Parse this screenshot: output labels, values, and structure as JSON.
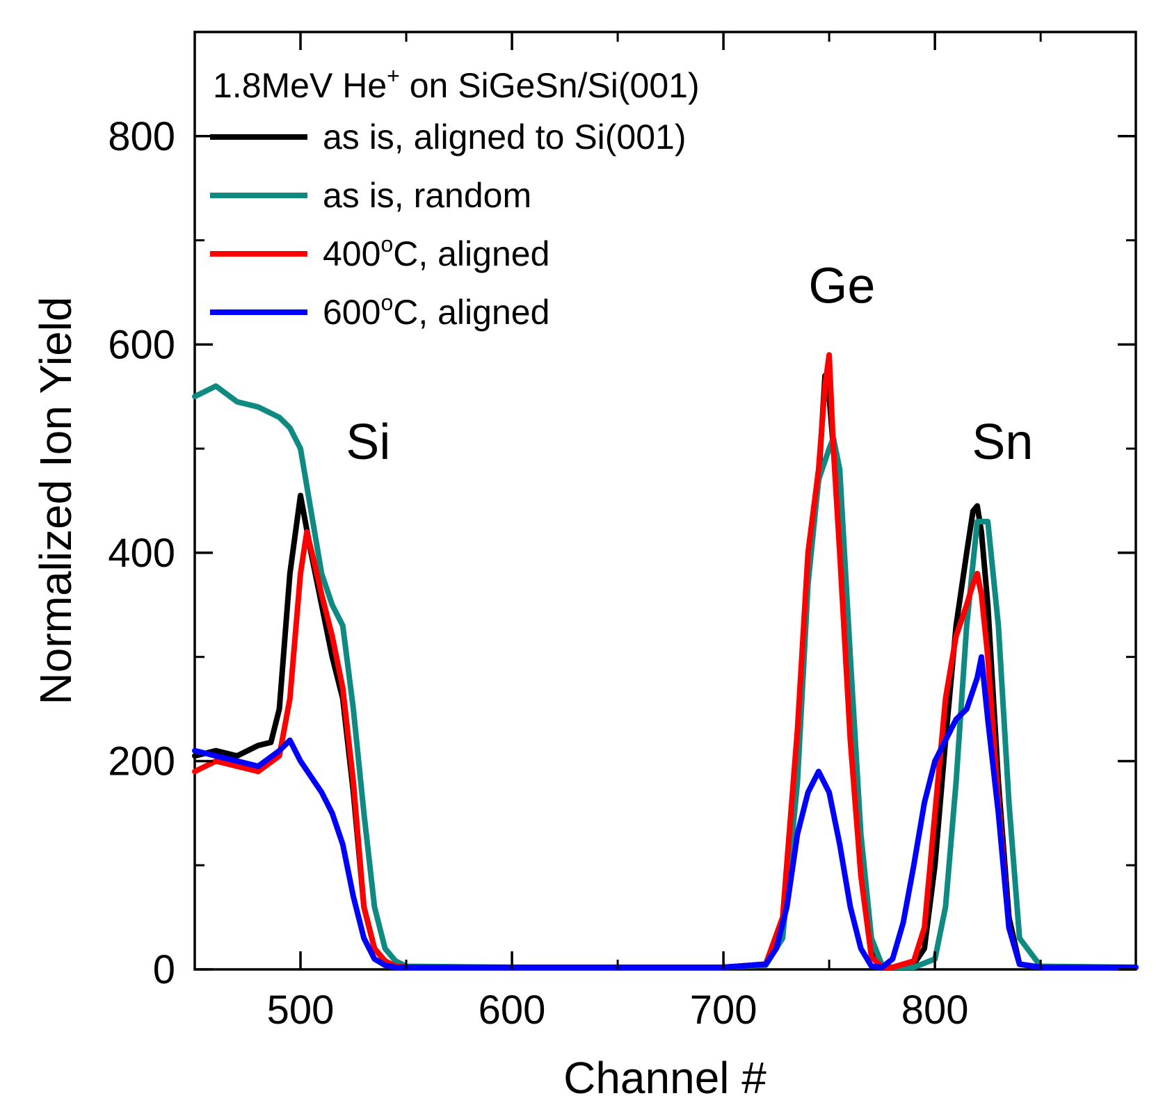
{
  "chart_data": {
    "type": "line",
    "title": "",
    "xlabel": "Channel #",
    "ylabel": "Normalized Ion Yield",
    "xlim": [
      450,
      895
    ],
    "ylim": [
      0,
      900
    ],
    "x_ticks": [
      500,
      600,
      700,
      800
    ],
    "y_ticks": [
      0,
      200,
      400,
      600,
      800
    ],
    "x_tick_labels": [
      "500",
      "600",
      "700",
      "800"
    ],
    "y_tick_labels": [
      "0",
      "200",
      "400",
      "600",
      "800"
    ],
    "legend_header": {
      "prefix": "1.8MeV He",
      "superscript": "+",
      "suffix": " on SiGeSn/Si(001)"
    },
    "legend_position": "top-left",
    "annotations": [
      {
        "text": "Si",
        "x": 532,
        "y": 490
      },
      {
        "text": "Ge",
        "x": 756,
        "y": 640
      },
      {
        "text": "Sn",
        "x": 832,
        "y": 490
      }
    ],
    "series": [
      {
        "name": "as is, aligned to Si(001)",
        "label_parts": {
          "main": "as is, aligned to Si(001)",
          "sup": "",
          "tail": ""
        },
        "color": "#000000",
        "x": [
          450,
          460,
          470,
          480,
          486,
          490,
          495,
          500,
          505,
          510,
          515,
          520,
          525,
          530,
          535,
          540,
          545,
          550,
          600,
          700,
          720,
          728,
          735,
          740,
          745,
          748,
          750,
          752,
          755,
          760,
          765,
          770,
          775,
          780,
          790,
          795,
          800,
          805,
          810,
          815,
          818,
          820,
          822,
          825,
          830,
          835,
          840,
          850,
          895
        ],
        "y": [
          205,
          210,
          205,
          215,
          218,
          250,
          380,
          455,
          400,
          350,
          300,
          260,
          170,
          60,
          20,
          8,
          3,
          2,
          2,
          2,
          5,
          40,
          200,
          380,
          470,
          570,
          550,
          500,
          420,
          250,
          100,
          15,
          2,
          2,
          5,
          20,
          100,
          220,
          330,
          400,
          440,
          445,
          420,
          350,
          180,
          50,
          5,
          2,
          2
        ]
      },
      {
        "name": "as is, random",
        "label_parts": {
          "main": "as is, random",
          "sup": "",
          "tail": ""
        },
        "color": "#0e8a82",
        "x": [
          450,
          460,
          470,
          480,
          490,
          495,
          500,
          505,
          510,
          515,
          520,
          525,
          530,
          535,
          540,
          545,
          550,
          600,
          700,
          720,
          728,
          735,
          740,
          745,
          750,
          752,
          755,
          760,
          765,
          770,
          775,
          780,
          790,
          800,
          805,
          810,
          815,
          820,
          825,
          830,
          835,
          840,
          850,
          895
        ],
        "y": [
          550,
          560,
          545,
          540,
          530,
          520,
          500,
          440,
          380,
          350,
          330,
          250,
          150,
          60,
          20,
          8,
          3,
          2,
          2,
          4,
          30,
          180,
          370,
          470,
          500,
          510,
          480,
          300,
          130,
          30,
          4,
          2,
          2,
          10,
          60,
          180,
          330,
          430,
          430,
          330,
          160,
          30,
          3,
          2
        ]
      },
      {
        "name": "400°C, aligned",
        "label_parts": {
          "main": "400",
          "sup": "o",
          "tail": "C, aligned"
        },
        "color": "#ff0000",
        "x": [
          450,
          460,
          470,
          480,
          490,
          495,
          500,
          503,
          506,
          510,
          515,
          520,
          525,
          530,
          535,
          540,
          545,
          550,
          600,
          700,
          720,
          728,
          735,
          740,
          745,
          748,
          750,
          752,
          755,
          760,
          765,
          770,
          775,
          780,
          790,
          795,
          800,
          805,
          810,
          815,
          818,
          820,
          822,
          825,
          830,
          835,
          840,
          850,
          895
        ],
        "y": [
          190,
          200,
          195,
          190,
          205,
          260,
          380,
          420,
          395,
          360,
          320,
          270,
          180,
          60,
          20,
          8,
          3,
          2,
          2,
          2,
          5,
          50,
          230,
          400,
          480,
          560,
          590,
          500,
          400,
          220,
          90,
          12,
          2,
          2,
          8,
          40,
          150,
          260,
          320,
          350,
          370,
          380,
          360,
          300,
          160,
          40,
          5,
          2,
          2
        ]
      },
      {
        "name": "600°C, aligned",
        "label_parts": {
          "main": "600",
          "sup": "o",
          "tail": "C, aligned"
        },
        "color": "#0000ff",
        "x": [
          450,
          460,
          470,
          480,
          490,
          495,
          500,
          505,
          510,
          515,
          520,
          525,
          530,
          535,
          540,
          545,
          550,
          600,
          700,
          720,
          725,
          730,
          735,
          740,
          745,
          750,
          755,
          760,
          765,
          770,
          775,
          780,
          785,
          790,
          795,
          800,
          805,
          810,
          815,
          820,
          822,
          825,
          830,
          835,
          840,
          850,
          895
        ],
        "y": [
          210,
          205,
          200,
          195,
          210,
          220,
          200,
          185,
          170,
          150,
          120,
          70,
          30,
          10,
          4,
          2,
          2,
          2,
          2,
          5,
          20,
          60,
          130,
          170,
          190,
          170,
          120,
          60,
          20,
          3,
          2,
          10,
          45,
          100,
          160,
          200,
          220,
          240,
          250,
          280,
          300,
          240,
          150,
          40,
          5,
          2,
          2
        ]
      }
    ]
  }
}
